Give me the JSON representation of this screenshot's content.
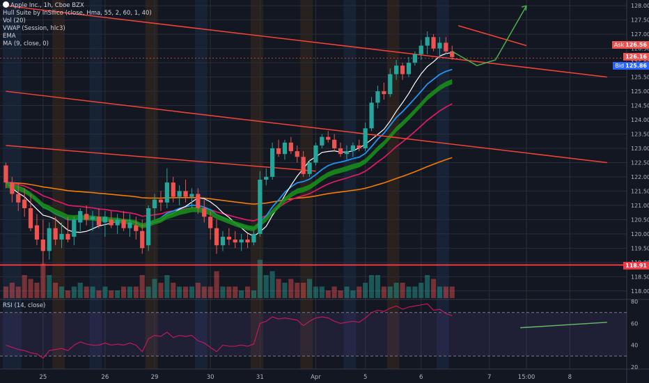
{
  "legend": {
    "symbol": "Apple Inc., 1h, Cboe BZX",
    "indicators": [
      "Hull Suite by InSilico (close, Hma, 55, 2, 60, 1, 40)",
      "Vol (20)",
      "VWAP (Session, hlc3)",
      "EMA",
      "MA (9, close, 0)"
    ]
  },
  "rsi_legend": "RSI (14, close)",
  "price_tags": {
    "ask": {
      "label": "Ask",
      "value": "126.56",
      "color": "#ef5350"
    },
    "last": {
      "label": "",
      "value": "126.16",
      "color": "#ef5350"
    },
    "bid": {
      "label": "Bid",
      "value": "125.86",
      "color": "#2962ff"
    },
    "horizontal": {
      "label": "",
      "value": "118.91",
      "color": "#f23645"
    }
  },
  "chart_data": {
    "type": "candlestick",
    "y_ticks": [
      "128.00",
      "127.50",
      "127.00",
      "126.50",
      "126.00",
      "125.50",
      "125.00",
      "124.50",
      "124.00",
      "123.50",
      "123.00",
      "122.50",
      "122.00",
      "121.50",
      "121.00",
      "120.50",
      "120.00",
      "119.50",
      "119.00",
      "118.50",
      "118.00"
    ],
    "ylim": [
      117.75,
      128.2
    ],
    "rsi_ticks": [
      "80",
      "60",
      "40",
      "20"
    ],
    "rsi_ylim": [
      18,
      82
    ],
    "rsi_bands": [
      70,
      30
    ],
    "x_labels": [
      {
        "label": "25",
        "i": 6
      },
      {
        "label": "26",
        "i": 16
      },
      {
        "label": "29",
        "i": 24
      },
      {
        "label": "30",
        "i": 33
      },
      {
        "label": "31",
        "i": 41
      },
      {
        "label": "Apr",
        "i": 50
      },
      {
        "label": "5",
        "i": 58
      },
      {
        "label": "6",
        "i": 67
      },
      {
        "label": "7",
        "i": 78
      },
      {
        "label": "15:00",
        "i": 84
      },
      {
        "label": "8",
        "i": 91
      }
    ],
    "n_slots": 98,
    "ohlc": [
      [
        122.4,
        122.5,
        121.6,
        121.8
      ],
      [
        121.8,
        122.0,
        121.1,
        121.4
      ],
      [
        121.4,
        121.8,
        120.8,
        121.1
      ],
      [
        121.2,
        121.6,
        120.6,
        120.9
      ],
      [
        120.9,
        121.4,
        120.1,
        120.2
      ],
      [
        120.3,
        120.7,
        119.6,
        119.8
      ],
      [
        119.8,
        120.5,
        118.9,
        119.4
      ],
      [
        119.4,
        120.4,
        119.1,
        120.2
      ],
      [
        120.2,
        120.6,
        119.6,
        119.8
      ],
      [
        119.8,
        120.4,
        119.5,
        120.0
      ],
      [
        120.0,
        120.6,
        119.7,
        119.8
      ],
      [
        119.9,
        120.6,
        119.6,
        120.5
      ],
      [
        120.4,
        120.9,
        120.1,
        120.8
      ],
      [
        120.7,
        121.0,
        120.3,
        120.5
      ],
      [
        120.5,
        120.8,
        120.1,
        120.6
      ],
      [
        120.6,
        120.9,
        120.2,
        120.3
      ],
      [
        120.4,
        120.8,
        119.9,
        120.6
      ],
      [
        120.5,
        120.8,
        120.2,
        120.3
      ],
      [
        120.3,
        120.7,
        120.0,
        120.5
      ],
      [
        120.5,
        120.8,
        120.1,
        120.2
      ],
      [
        120.2,
        120.7,
        119.9,
        120.4
      ],
      [
        120.3,
        120.6,
        119.8,
        120.1
      ],
      [
        120.1,
        120.5,
        119.3,
        119.5
      ],
      [
        119.6,
        121.0,
        119.4,
        120.9
      ],
      [
        120.9,
        121.4,
        120.5,
        121.2
      ],
      [
        121.2,
        121.5,
        120.8,
        121.1
      ],
      [
        121.1,
        122.3,
        120.9,
        121.8
      ],
      [
        121.8,
        122.0,
        121.1,
        121.3
      ],
      [
        121.3,
        121.7,
        121.0,
        121.5
      ],
      [
        121.5,
        121.9,
        121.1,
        121.3
      ],
      [
        121.3,
        121.6,
        120.9,
        121.4
      ],
      [
        121.4,
        121.6,
        120.7,
        120.9
      ],
      [
        120.9,
        121.2,
        120.4,
        120.6
      ],
      [
        120.6,
        120.8,
        119.8,
        120.2
      ],
      [
        120.2,
        120.5,
        119.3,
        119.6
      ],
      [
        119.6,
        120.1,
        119.4,
        119.9
      ],
      [
        119.9,
        120.2,
        119.6,
        119.8
      ],
      [
        119.8,
        120.1,
        119.5,
        119.7
      ],
      [
        119.7,
        120.0,
        119.4,
        119.8
      ],
      [
        119.8,
        120.0,
        119.5,
        119.7
      ],
      [
        119.7,
        120.1,
        119.6,
        120.0
      ],
      [
        120.0,
        122.2,
        119.9,
        121.9
      ],
      [
        121.9,
        122.3,
        121.7,
        122.0
      ],
      [
        122.0,
        123.2,
        121.9,
        123.0
      ],
      [
        123.0,
        123.3,
        122.7,
        122.8
      ],
      [
        122.8,
        123.3,
        122.6,
        123.2
      ],
      [
        123.2,
        123.4,
        122.8,
        122.9
      ],
      [
        122.9,
        123.1,
        122.5,
        122.7
      ],
      [
        122.7,
        122.9,
        122.0,
        122.1
      ],
      [
        122.1,
        122.6,
        122.0,
        122.5
      ],
      [
        122.5,
        123.2,
        122.4,
        123.1
      ],
      [
        123.1,
        123.5,
        123.0,
        123.4
      ],
      [
        123.4,
        123.6,
        123.2,
        123.3
      ],
      [
        123.3,
        123.5,
        122.9,
        123.0
      ],
      [
        123.0,
        123.2,
        122.7,
        122.8
      ],
      [
        122.8,
        123.1,
        122.6,
        122.9
      ],
      [
        122.9,
        123.2,
        122.7,
        123.1
      ],
      [
        123.1,
        123.3,
        122.9,
        123.0
      ],
      [
        123.0,
        123.9,
        122.9,
        123.7
      ],
      [
        123.7,
        124.8,
        123.6,
        124.6
      ],
      [
        124.6,
        125.2,
        124.4,
        125.0
      ],
      [
        125.0,
        125.3,
        124.7,
        124.9
      ],
      [
        124.9,
        125.8,
        124.8,
        125.6
      ],
      [
        125.6,
        126.1,
        125.4,
        125.9
      ],
      [
        125.9,
        126.0,
        125.4,
        125.6
      ],
      [
        125.6,
        126.2,
        125.5,
        126.0
      ],
      [
        126.0,
        126.4,
        125.9,
        126.3
      ],
      [
        126.3,
        126.8,
        126.1,
        126.6
      ],
      [
        126.6,
        127.1,
        126.3,
        126.9
      ],
      [
        126.9,
        127.0,
        126.4,
        126.5
      ],
      [
        126.5,
        126.9,
        126.2,
        126.7
      ],
      [
        126.7,
        126.9,
        126.3,
        126.4
      ],
      [
        126.4,
        126.6,
        126.1,
        126.2
      ]
    ],
    "volume": [
      3,
      4,
      3,
      6,
      5,
      4,
      9,
      6,
      4,
      3,
      2,
      3,
      4,
      3,
      3,
      2,
      3,
      2,
      2,
      3,
      3,
      3,
      6,
      3,
      5,
      4,
      6,
      4,
      3,
      3,
      3,
      4,
      3,
      3,
      7,
      3,
      3,
      3,
      2,
      3,
      2,
      10,
      6,
      7,
      5,
      4,
      5,
      4,
      4,
      5,
      3,
      3,
      2,
      3,
      2,
      3,
      2,
      3,
      4,
      6,
      6,
      3,
      3,
      4,
      4,
      3,
      3,
      4,
      6,
      5,
      3,
      3,
      3
    ],
    "rsi": [
      40,
      38,
      36,
      35,
      33,
      32,
      28,
      35,
      36,
      37,
      35,
      40,
      43,
      41,
      40,
      40,
      42,
      40,
      41,
      40,
      42,
      40,
      34,
      46,
      49,
      48,
      52,
      47,
      49,
      48,
      49,
      44,
      42,
      38,
      34,
      40,
      39,
      39,
      40,
      39,
      41,
      60,
      62,
      66,
      64,
      65,
      64,
      63,
      58,
      62,
      65,
      66,
      65,
      62,
      60,
      61,
      62,
      61,
      65,
      70,
      72,
      71,
      74,
      76,
      73,
      75,
      76,
      77,
      78,
      72,
      73,
      69,
      67
    ],
    "rsi_trend": {
      "from": [
        83,
        56
      ],
      "to": [
        97,
        61
      ]
    }
  }
}
